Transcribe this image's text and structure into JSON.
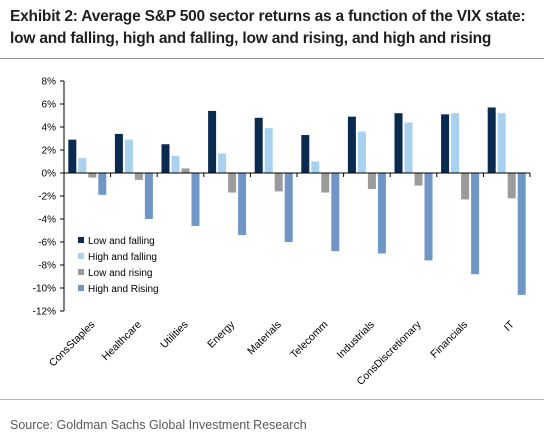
{
  "header": {
    "title": "Exhibit 2: Average S&P 500 sector returns as a function of the VIX state: low and falling, high and falling, low and rising, and high and rising"
  },
  "footer": {
    "source": "Source: Goldman Sachs Global Investment Research"
  },
  "chart_data": {
    "type": "bar",
    "title": "",
    "xlabel": "",
    "ylabel": "",
    "ylim": [
      -12,
      8
    ],
    "yticks": [
      8,
      6,
      4,
      2,
      0,
      -2,
      -4,
      -6,
      -8,
      -10,
      -12
    ],
    "ytick_labels": [
      "8%",
      "6%",
      "4%",
      "2%",
      "0%",
      "-2%",
      "-4%",
      "-6%",
      "-8%",
      "-10%",
      "-12%"
    ],
    "grid": false,
    "legend_position": "lower-left",
    "categories": [
      "ConsStaples",
      "Healthcare",
      "Utilities",
      "Energy",
      "Materials",
      "Telecomm",
      "Industrials",
      "ConsDiscretionary",
      "Financials",
      "IT"
    ],
    "series": [
      {
        "name": "Low and falling",
        "color": "#0b2a4f",
        "values": [
          2.9,
          3.4,
          2.5,
          5.4,
          4.8,
          3.3,
          4.9,
          5.2,
          5.1,
          5.7
        ]
      },
      {
        "name": "High and falling",
        "color": "#a9d2f0",
        "values": [
          1.3,
          2.9,
          1.5,
          1.7,
          3.9,
          1.0,
          3.6,
          4.4,
          5.2,
          5.2
        ]
      },
      {
        "name": "Low and rising",
        "color": "#9b9b9b",
        "values": [
          -0.4,
          -0.6,
          0.4,
          -1.7,
          -1.6,
          -1.7,
          -1.4,
          -1.1,
          -2.3,
          -2.2
        ]
      },
      {
        "name": "High and Rising",
        "color": "#6f96c4",
        "values": [
          -1.9,
          -4.0,
          -4.6,
          -5.4,
          -6.0,
          -6.8,
          -7.0,
          -7.6,
          -8.8,
          -10.6
        ]
      }
    ]
  }
}
